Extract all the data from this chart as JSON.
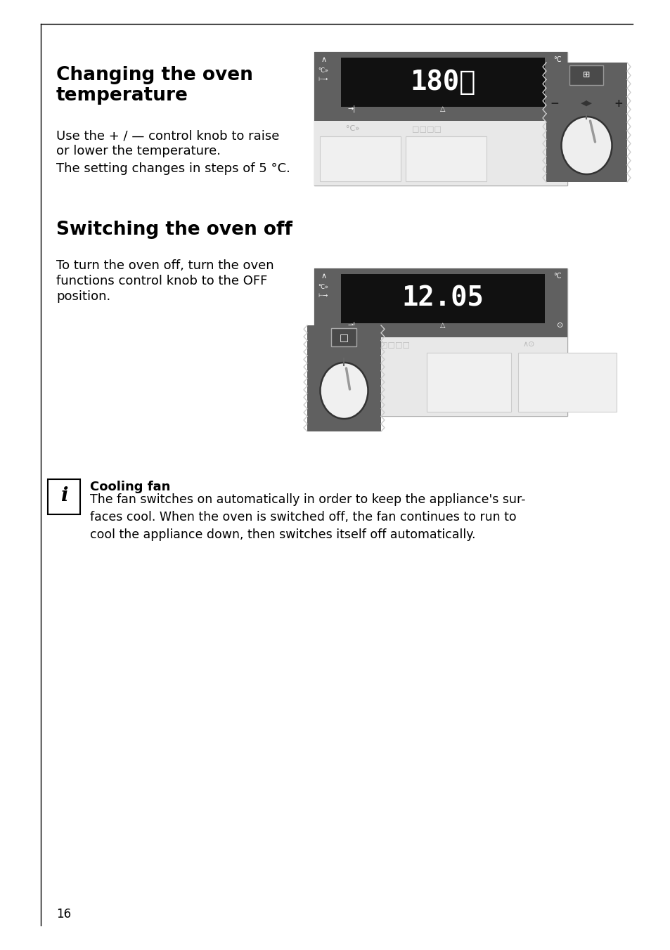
{
  "page_bg": "#ffffff",
  "title1": "Changing the oven\ntemperature",
  "body1_line1": "Use the + / — control knob to raise",
  "body1_line2": "or lower the temperature.",
  "body1_line3": "The setting changes in steps of 5 °C.",
  "title2": "Switching the oven off",
  "body2_line1": "To turn the oven off, turn the oven",
  "body2_line2": "functions control knob to the OFF",
  "body2_line3": "position.",
  "info_title": "Cooling fan",
  "info_body": "The fan switches on automatically in order to keep the appliance's sur-\nfaces cool. When the oven is switched off, the fan continues to run to\ncool the appliance down, then switches itself off automatically.",
  "display1_text": "180℃",
  "display2_text": "12.05",
  "panel_dark": "#606060",
  "panel_black": "#111111",
  "panel_mid": "#888888",
  "panel_light": "#e0e0e0",
  "display_text_color": "#ffffff",
  "page_number": "16",
  "knob_dark": "#555555",
  "knob_bg": "#d8d8d8"
}
